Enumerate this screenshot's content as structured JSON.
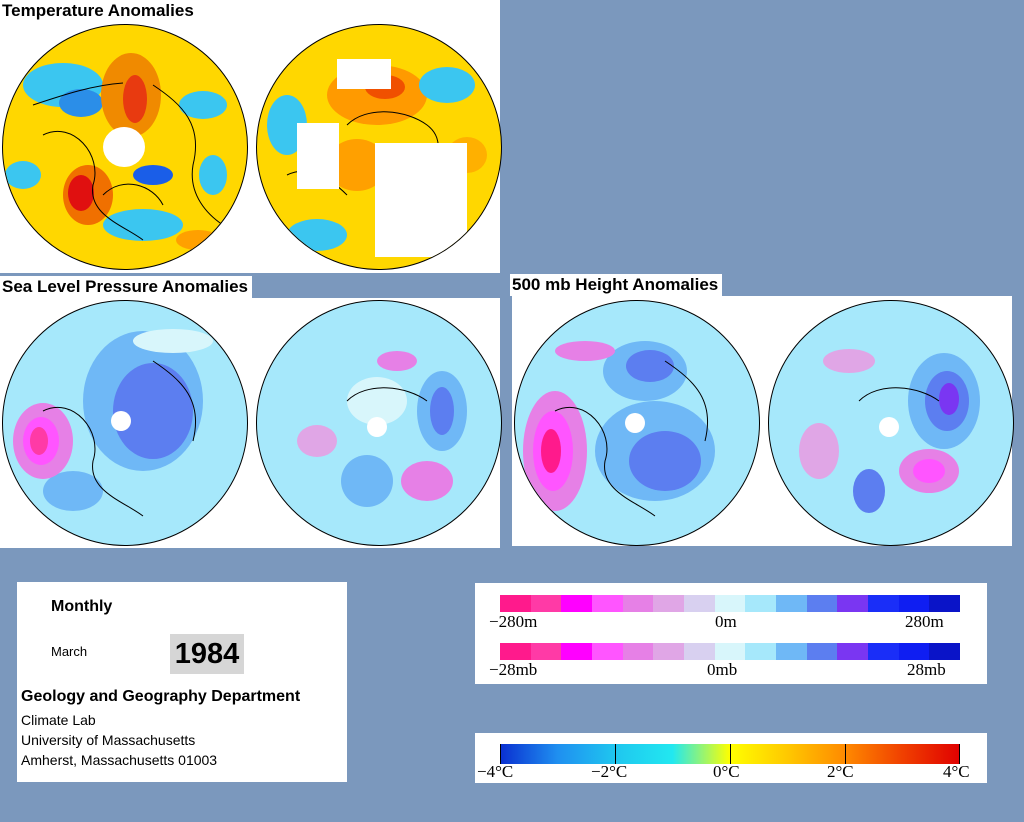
{
  "titles": {
    "temperature": "Temperature Anomalies",
    "slp": "Sea Level Pressure Anomalies",
    "height500": "500 mb Height Anomalies"
  },
  "info": {
    "period": "Monthly",
    "month": "March",
    "year": "1984",
    "department": "Geology and Geography Department",
    "address_lines": [
      "Climate Lab",
      "University of Massachusetts",
      "Amherst, Massachusetts 01003"
    ]
  },
  "legends": {
    "height": {
      "min": "−280m",
      "mid": "0m",
      "max": "280m"
    },
    "pressure": {
      "min": "−28mb",
      "mid": "0mb",
      "max": "28mb"
    },
    "temperature": {
      "t1": "−4°C",
      "t2": "−2°C",
      "t3": "0°C",
      "t4": "2°C",
      "t5": "4°C"
    }
  },
  "colors": {
    "anomaly_scale": [
      "#ff1a8c",
      "#ff3aa6",
      "#ff00ff",
      "#ff55ff",
      "#e680e6",
      "#e0a6e6",
      "#d8d0f0",
      "#d8f6fb",
      "#a6e8fb",
      "#6fb8f6",
      "#5c7ef0",
      "#7a36f2",
      "#1a2ef8",
      "#0f1ef2",
      "#0a14c8"
    ],
    "temp_scale": [
      "#0a2fd0",
      "#1f8ff0",
      "#1fc6ef",
      "#22e8f0",
      "#ffff00",
      "#ffc800",
      "#ff8a00",
      "#f04000",
      "#e00000"
    ],
    "background": "#7b98bd"
  }
}
